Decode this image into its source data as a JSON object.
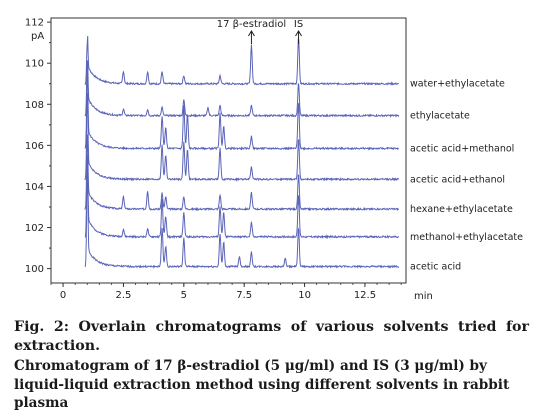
{
  "chart_data": {
    "type": "line",
    "title": "",
    "xlabel": "",
    "ylabel": "",
    "x_unit": "min",
    "y_unit": "pA",
    "xlim": [
      -0.5,
      14.2
    ],
    "ylim": [
      99.3,
      112.2
    ],
    "x_ticks": [
      "0",
      "2.5",
      "5",
      "7.5",
      "10",
      "12.5"
    ],
    "y_ticks": [
      "100",
      "102",
      "104",
      "106",
      "108",
      "110",
      "112"
    ],
    "grid": false,
    "legend": "labels at right end of each trace",
    "line_color": "#5a64b8",
    "annotations": [
      {
        "text": "17 β-estradiol",
        "x": 7.8
      },
      {
        "text": "IS",
        "x": 9.75
      }
    ],
    "series": [
      {
        "name": "acetic acid",
        "baseline": 100.1,
        "peaks": [
          [
            1.0,
            4.6
          ],
          [
            4.1,
            1.9
          ],
          [
            4.25,
            1.0
          ],
          [
            5.0,
            1.4
          ],
          [
            6.5,
            1.6
          ],
          [
            6.65,
            1.2
          ],
          [
            7.3,
            0.5
          ],
          [
            7.8,
            0.7
          ],
          [
            9.2,
            0.4
          ],
          [
            9.75,
            1.9
          ]
        ]
      },
      {
        "name": "methanol+ethylacetate",
        "baseline": 101.55,
        "peaks": [
          [
            1.0,
            4.0
          ],
          [
            2.5,
            0.35
          ],
          [
            3.5,
            0.4
          ],
          [
            4.1,
            1.8
          ],
          [
            4.25,
            1.0
          ],
          [
            5.0,
            1.2
          ],
          [
            6.5,
            1.5
          ],
          [
            6.65,
            1.2
          ],
          [
            7.8,
            0.7
          ],
          [
            9.75,
            2.1
          ]
        ]
      },
      {
        "name": "hexane+ethylacetate",
        "baseline": 102.9,
        "peaks": [
          [
            1.0,
            3.6
          ],
          [
            2.5,
            0.6
          ],
          [
            3.5,
            0.9
          ],
          [
            4.1,
            0.8
          ],
          [
            4.25,
            0.6
          ],
          [
            5.0,
            0.6
          ],
          [
            6.5,
            0.7
          ],
          [
            7.8,
            0.8
          ],
          [
            9.75,
            1.7
          ]
        ]
      },
      {
        "name": "acetic acid+ethanol",
        "baseline": 104.35,
        "peaks": [
          [
            1.0,
            4.2
          ],
          [
            4.1,
            1.7
          ],
          [
            4.25,
            1.2
          ],
          [
            5.0,
            1.8
          ],
          [
            5.15,
            1.5
          ],
          [
            6.5,
            1.5
          ],
          [
            7.8,
            0.6
          ],
          [
            9.75,
            2.0
          ]
        ]
      },
      {
        "name": "acetic acid+methanol",
        "baseline": 105.85,
        "peaks": [
          [
            1.0,
            3.8
          ],
          [
            4.1,
            1.6
          ],
          [
            4.25,
            1.0
          ],
          [
            5.0,
            2.1
          ],
          [
            5.15,
            1.7
          ],
          [
            6.5,
            1.7
          ],
          [
            6.65,
            1.1
          ],
          [
            7.8,
            0.6
          ],
          [
            9.75,
            2.3
          ]
        ]
      },
      {
        "name": "ethylacetate",
        "baseline": 107.45,
        "peaks": [
          [
            1.0,
            2.6
          ],
          [
            2.5,
            0.3
          ],
          [
            3.5,
            0.3
          ],
          [
            4.1,
            0.4
          ],
          [
            5.0,
            0.8
          ],
          [
            6.0,
            0.4
          ],
          [
            6.5,
            0.5
          ],
          [
            7.8,
            0.5
          ],
          [
            9.75,
            1.6
          ]
        ]
      },
      {
        "name": "water+ethylacetate",
        "baseline": 109.0,
        "peaks": [
          [
            1.0,
            2.0
          ],
          [
            2.5,
            0.6
          ],
          [
            3.5,
            0.6
          ],
          [
            4.1,
            0.6
          ],
          [
            5.0,
            0.4
          ],
          [
            6.5,
            0.4
          ],
          [
            7.8,
            1.9
          ],
          [
            9.75,
            2.3
          ]
        ]
      }
    ]
  },
  "caption": {
    "line1": "Fig. 2: Overlain chromatograms of various solvents tried for extraction.",
    "line2": "Chromatogram of 17 β-estradiol (5 μg/ml) and IS (3 μg/ml) by liquid-liquid extraction method using different solvents in rabbit plasma"
  }
}
